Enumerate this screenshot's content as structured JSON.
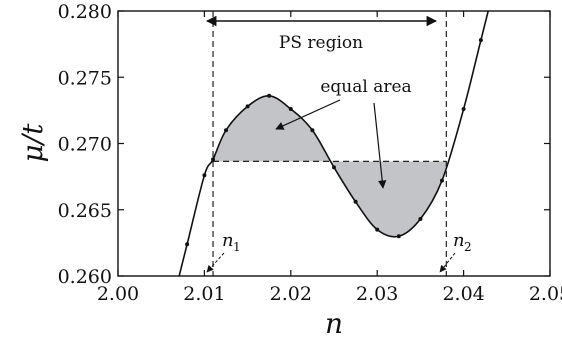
{
  "chart_data": {
    "type": "line",
    "title": "",
    "xlabel": "n",
    "ylabel": "μ/t",
    "xlim": [
      2.0,
      2.05
    ],
    "ylim": [
      0.26,
      0.28
    ],
    "x_ticks": [
      2.0,
      2.01,
      2.02,
      2.03,
      2.04,
      2.05
    ],
    "x_tick_labels": [
      "2.00",
      "2.01",
      "2.02",
      "2.03",
      "2.04",
      "2.05"
    ],
    "y_ticks": [
      0.26,
      0.265,
      0.27,
      0.275,
      0.28
    ],
    "y_tick_labels": [
      "0.260",
      "0.265",
      "0.270",
      "0.275",
      "0.280"
    ],
    "grid": false,
    "series": [
      {
        "style": "solid-line-with-dots",
        "x": [
          2.008,
          2.01,
          2.011,
          2.0125,
          2.015,
          2.0175,
          2.02,
          2.0225,
          2.025,
          2.0275,
          2.03,
          2.0325,
          2.035,
          2.0375,
          2.04,
          2.042
        ],
        "y": [
          0.2624,
          0.2676,
          0.2688,
          0.271,
          0.2728,
          0.2736,
          0.2726,
          0.271,
          0.2682,
          0.2656,
          0.2635,
          0.263,
          0.2643,
          0.2672,
          0.2726,
          0.2778
        ]
      }
    ],
    "maxwell_line": {
      "y": 0.26865,
      "x_start": 2.011,
      "x_end": 2.038
    },
    "bounds": [
      {
        "name": "n1",
        "x": 2.011
      },
      {
        "name": "n2",
        "x": 2.038
      }
    ],
    "annotations": {
      "ps_region": "PS region",
      "equal_area": "equal area",
      "n1_label": "n",
      "n1_sub": "1",
      "n2_label": "n",
      "n2_sub": "2"
    }
  }
}
